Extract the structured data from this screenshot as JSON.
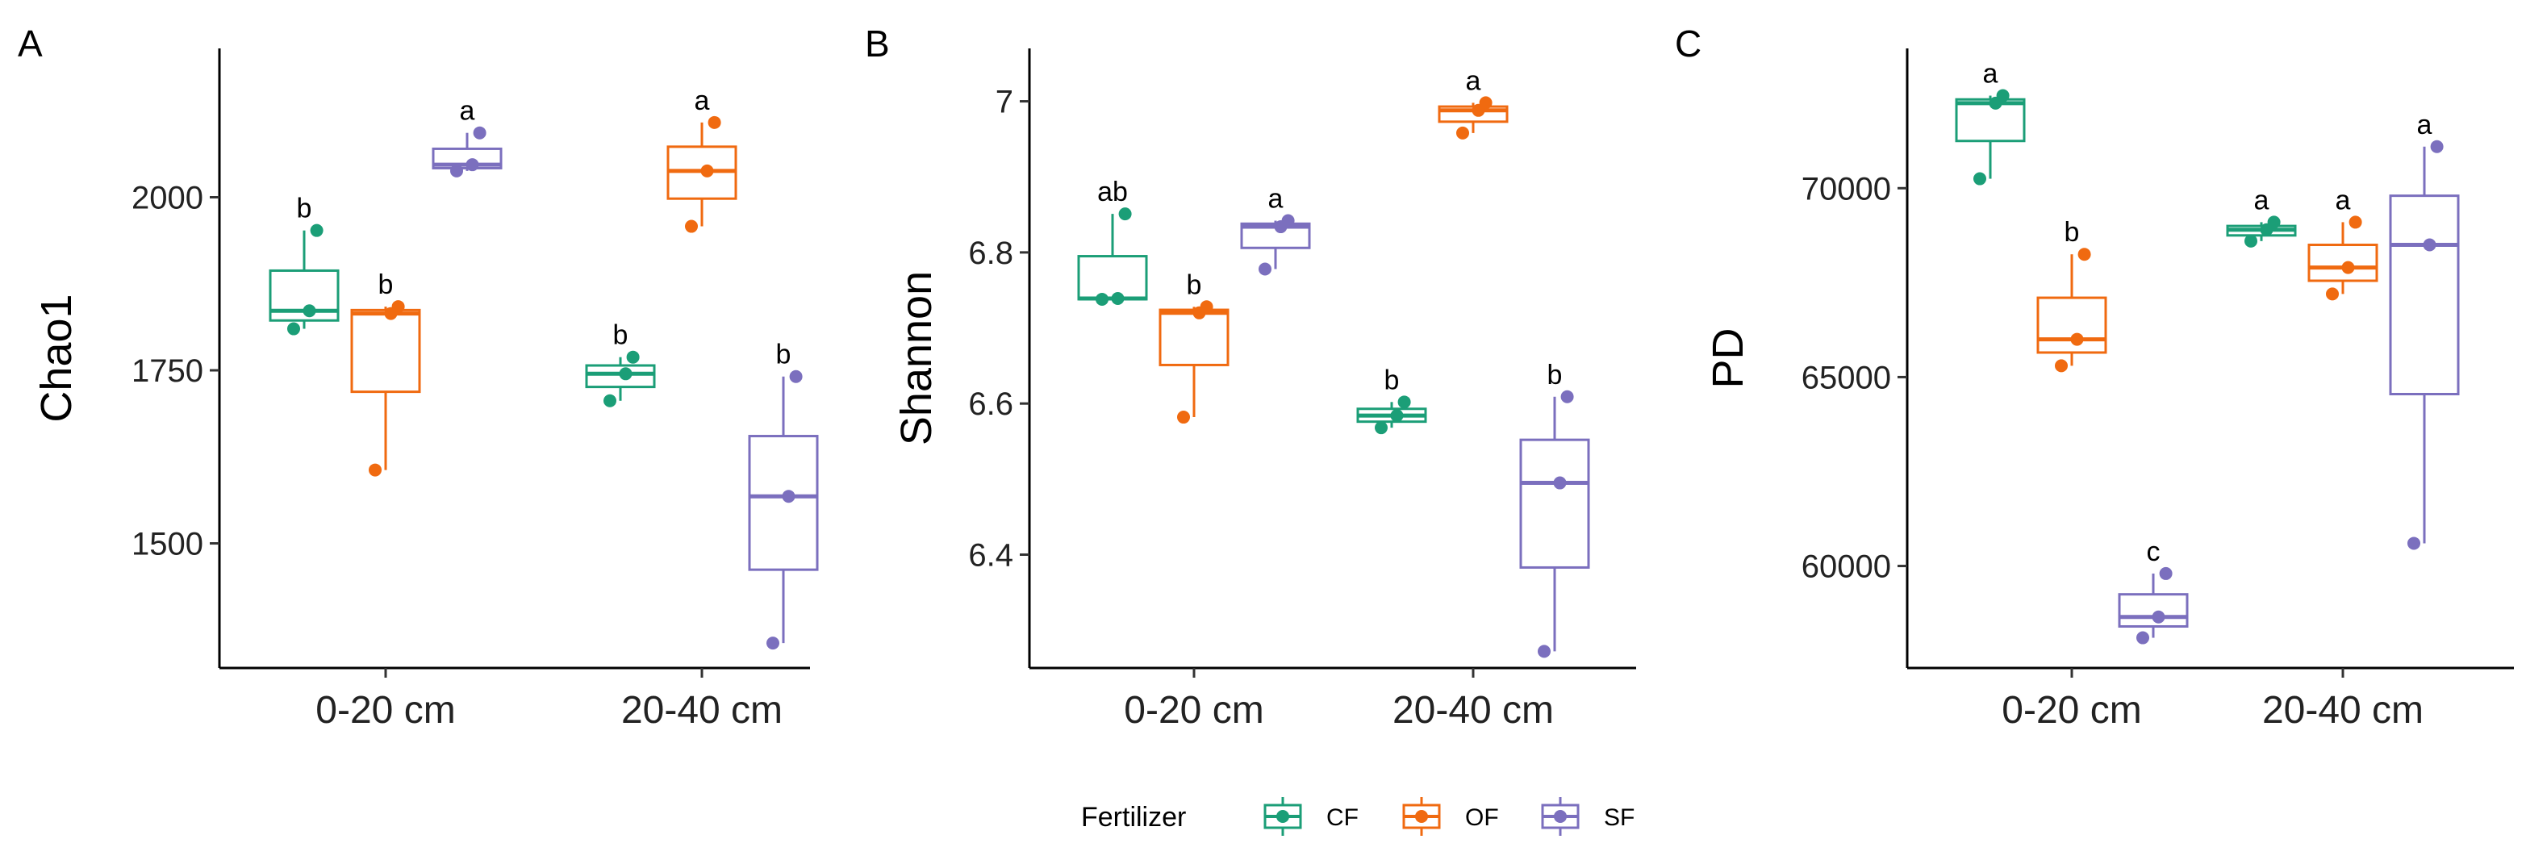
{
  "colors": {
    "CF": "#1b9e77",
    "OF": "#f06a10",
    "SF": "#7b6fbe"
  },
  "legend": {
    "title": "Fertilizer",
    "placement": "bottom",
    "entries": [
      "CF",
      "OF",
      "SF"
    ]
  },
  "chart_data": [
    {
      "type": "box",
      "panel": "A",
      "ylabel": "Chao1",
      "categories": [
        "0-20 cm",
        "20-40 cm"
      ],
      "yticks": [
        1500,
        1750,
        2000
      ],
      "ylim": [
        1320,
        2215
      ],
      "groups": [
        {
          "category": "0-20 cm",
          "fertilizer": "CF",
          "min": 1810,
          "q1": 1822,
          "median": 1836,
          "q3": 1894,
          "max": 1952,
          "points": [
            1810,
            1836,
            1952
          ],
          "label": "b"
        },
        {
          "category": "0-20 cm",
          "fertilizer": "OF",
          "min": 1606,
          "q1": 1719,
          "median": 1832,
          "q3": 1837,
          "max": 1842,
          "points": [
            1606,
            1832,
            1842
          ],
          "label": "b"
        },
        {
          "category": "0-20 cm",
          "fertilizer": "SF",
          "min": 2038,
          "q1": 2042,
          "median": 2047,
          "q3": 2070,
          "max": 2093,
          "points": [
            2038,
            2047,
            2093
          ],
          "label": "a"
        },
        {
          "category": "20-40 cm",
          "fertilizer": "CF",
          "min": 1706,
          "q1": 1726,
          "median": 1745,
          "q3": 1757,
          "max": 1769,
          "points": [
            1706,
            1745,
            1769
          ],
          "label": "b"
        },
        {
          "category": "20-40 cm",
          "fertilizer": "OF",
          "min": 1958,
          "q1": 1998,
          "median": 2038,
          "q3": 2073,
          "max": 2108,
          "points": [
            1958,
            2038,
            2108
          ],
          "label": "a"
        },
        {
          "category": "20-40 cm",
          "fertilizer": "SF",
          "min": 1356,
          "q1": 1462,
          "median": 1568,
          "q3": 1655,
          "max": 1741,
          "points": [
            1356,
            1568,
            1741
          ],
          "label": "b"
        }
      ]
    },
    {
      "type": "box",
      "panel": "B",
      "ylabel": "Shannon",
      "categories": [
        "0-20 cm",
        "20-40 cm"
      ],
      "yticks": [
        6.4,
        6.6,
        6.8,
        7.0
      ],
      "ylim": [
        6.25,
        7.07
      ],
      "groups": [
        {
          "category": "0-20 cm",
          "fertilizer": "CF",
          "min": 6.738,
          "q1": 6.738,
          "median": 6.739,
          "q3": 6.795,
          "max": 6.851,
          "points": [
            6.738,
            6.739,
            6.851
          ],
          "label": "ab"
        },
        {
          "category": "0-20 cm",
          "fertilizer": "OF",
          "min": 6.582,
          "q1": 6.651,
          "median": 6.72,
          "q3": 6.724,
          "max": 6.728,
          "points": [
            6.582,
            6.72,
            6.728
          ],
          "label": "b"
        },
        {
          "category": "0-20 cm",
          "fertilizer": "SF",
          "min": 6.778,
          "q1": 6.806,
          "median": 6.834,
          "q3": 6.838,
          "max": 6.842,
          "points": [
            6.778,
            6.834,
            6.842
          ],
          "label": "a"
        },
        {
          "category": "20-40 cm",
          "fertilizer": "CF",
          "min": 6.568,
          "q1": 6.576,
          "median": 6.584,
          "q3": 6.593,
          "max": 6.602,
          "points": [
            6.568,
            6.584,
            6.602
          ],
          "label": "b"
        },
        {
          "category": "20-40 cm",
          "fertilizer": "OF",
          "min": 6.958,
          "q1": 6.973,
          "median": 6.988,
          "q3": 6.993,
          "max": 6.998,
          "points": [
            6.958,
            6.988,
            6.998
          ],
          "label": "a"
        },
        {
          "category": "20-40 cm",
          "fertilizer": "SF",
          "min": 6.272,
          "q1": 6.383,
          "median": 6.495,
          "q3": 6.552,
          "max": 6.609,
          "points": [
            6.272,
            6.495,
            6.609
          ],
          "label": "b"
        }
      ]
    },
    {
      "type": "box",
      "panel": "C",
      "ylabel": "PD",
      "categories": [
        "0-20 cm",
        "20-40 cm"
      ],
      "yticks": [
        60000,
        65000,
        70000
      ],
      "ylim": [
        57300,
        73700
      ],
      "groups": [
        {
          "category": "0-20 cm",
          "fertilizer": "CF",
          "min": 70250,
          "q1": 71250,
          "median": 72250,
          "q3": 72350,
          "max": 72450,
          "points": [
            70250,
            72250,
            72450
          ],
          "label": "a"
        },
        {
          "category": "0-20 cm",
          "fertilizer": "OF",
          "min": 65300,
          "q1": 65650,
          "median": 66000,
          "q3": 67100,
          "max": 68250,
          "points": [
            65300,
            66000,
            68250
          ],
          "label": "b"
        },
        {
          "category": "0-20 cm",
          "fertilizer": "SF",
          "min": 58100,
          "q1": 58400,
          "median": 58650,
          "q3": 59250,
          "max": 59800,
          "points": [
            58100,
            58650,
            59800
          ],
          "label": "c"
        },
        {
          "category": "20-40 cm",
          "fertilizer": "CF",
          "min": 68600,
          "q1": 68750,
          "median": 68900,
          "q3": 69000,
          "max": 69100,
          "points": [
            68600,
            68900,
            69100
          ],
          "label": "a"
        },
        {
          "category": "20-40 cm",
          "fertilizer": "OF",
          "min": 67200,
          "q1": 67550,
          "median": 67900,
          "q3": 68500,
          "max": 69100,
          "points": [
            67200,
            67900,
            69100
          ],
          "label": "a"
        },
        {
          "category": "20-40 cm",
          "fertilizer": "SF",
          "min": 60600,
          "q1": 64550,
          "median": 68500,
          "q3": 69800,
          "max": 71100,
          "points": [
            60600,
            68500,
            71100
          ],
          "label": "a"
        }
      ]
    }
  ]
}
